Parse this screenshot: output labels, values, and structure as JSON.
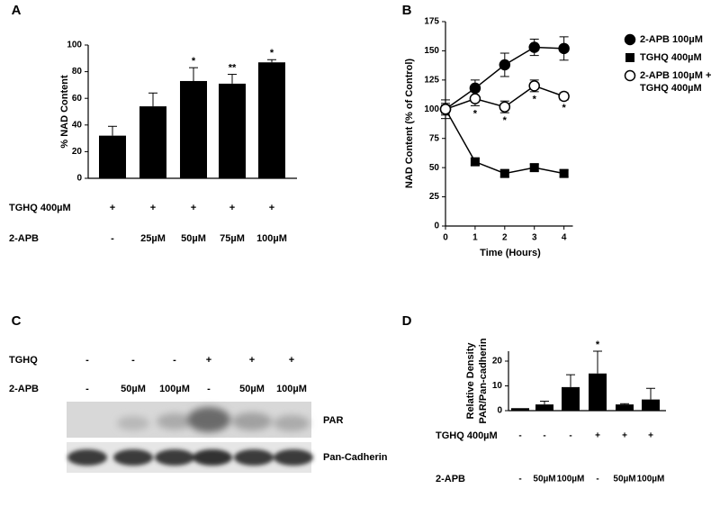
{
  "chart_data": [
    {
      "type": "bar",
      "panel": "A",
      "ylabel": "% NAD Content",
      "values": [
        32,
        54,
        73,
        71,
        87
      ],
      "errors": [
        7,
        10,
        10,
        7,
        2
      ],
      "significance": [
        null,
        null,
        "*",
        "**",
        "*"
      ],
      "color": "#000000",
      "ylim": [
        0,
        100
      ],
      "yticks": [
        0,
        20,
        40,
        60,
        80,
        100
      ],
      "condition_rows": [
        {
          "label": "TGHQ 400µM",
          "values": [
            "+",
            "+",
            "+",
            "+",
            "+"
          ]
        },
        {
          "label": "2-APB",
          "values": [
            "-",
            "25µM",
            "50µM",
            "75µM",
            "100µM"
          ]
        }
      ]
    },
    {
      "type": "line",
      "panel": "B",
      "ylabel": "NAD Content (% of Control)",
      "xlabel": "Time (Hours)",
      "x": [
        0,
        1,
        2,
        3,
        4
      ],
      "xlim": [
        0,
        4.3
      ],
      "xticks": [
        0,
        1,
        2,
        3,
        4
      ],
      "ylim": [
        0,
        175
      ],
      "yticks": [
        0,
        25,
        50,
        75,
        100,
        125,
        150,
        175
      ],
      "series": [
        {
          "name": "2-APB 100µM",
          "marker": "circle",
          "color": "#000000",
          "values": [
            100,
            118,
            138,
            153,
            152
          ],
          "errors": [
            8,
            7,
            10,
            7,
            10
          ]
        },
        {
          "name": "TGHQ 400µM",
          "marker": "square",
          "color": "#000000",
          "values": [
            100,
            55,
            45,
            50,
            45
          ],
          "errors": [
            3,
            3,
            3,
            3,
            3
          ]
        },
        {
          "name": "2-APB 100µM + TGHQ 400µM",
          "marker": "open-circle",
          "color": "#000000",
          "values": [
            100,
            109,
            102,
            120,
            111
          ],
          "errors": [
            5,
            6,
            5,
            5,
            3
          ],
          "significance": [
            null,
            "*",
            "*",
            "*",
            "*"
          ]
        }
      ]
    },
    {
      "type": "bar",
      "panel": "D",
      "ylabel": "Relative Density PAR/Pan-cadherin",
      "values": [
        1,
        2.5,
        9.5,
        15,
        2.5,
        4.5
      ],
      "errors": [
        0,
        1.3,
        5,
        9,
        0.3,
        4.5
      ],
      "significance": [
        null,
        null,
        null,
        "*",
        null,
        null
      ],
      "color": "#000000",
      "ylim": [
        0,
        24
      ],
      "yticks": [
        0,
        10,
        20
      ],
      "condition_rows": [
        {
          "label": "TGHQ 400µM",
          "values": [
            "-",
            "-",
            "-",
            "+",
            "+",
            "+"
          ]
        },
        {
          "label": "2-APB",
          "values": [
            "-",
            "50µM",
            "100µM",
            "-",
            "50µM",
            "100µM"
          ]
        }
      ]
    }
  ],
  "blot": {
    "panel": "C",
    "condition_rows": [
      {
        "label": "TGHQ",
        "values": [
          "-",
          "-",
          "-",
          "+",
          "+",
          "+"
        ]
      },
      {
        "label": "2-APB",
        "values": [
          "-",
          "50µM",
          "100µM",
          "-",
          "50µM",
          "100µM"
        ]
      }
    ],
    "bands": [
      "PAR",
      "Pan-Cadherin"
    ]
  }
}
